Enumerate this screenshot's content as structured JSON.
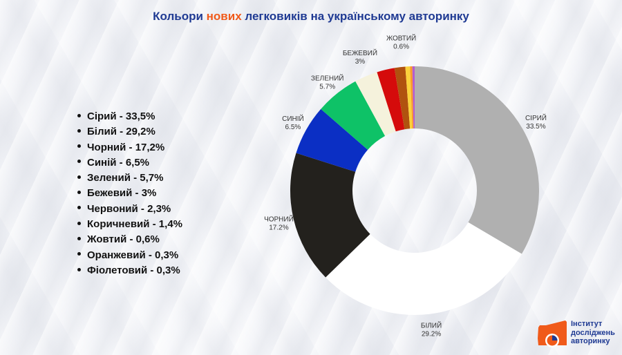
{
  "title": {
    "prefix": "Кольори ",
    "accent": "нових",
    "suffix": " легковиків на українському авторинку",
    "color": "#1f3a93",
    "accent_color": "#f05a1a"
  },
  "legend": [
    "Сірий - 33,5%",
    "Білий - 29,2%",
    "Чорний - 17,2%",
    "Синій - 6,5%",
    "Зелений - 5,7%",
    "Бежевий - 3%",
    "Червоний - 2,3%",
    "Коричневий - 1,4%",
    "Жовтий - 0,6%",
    "Оранжевий - 0,3%",
    "Фіолетовий - 0,3%"
  ],
  "chart_data": {
    "type": "pie",
    "subtype": "donut",
    "title": "Кольори нових легковиків на українському авторинку",
    "categories": [
      "Сірий",
      "Білий",
      "Чорний",
      "Синій",
      "Зелений",
      "Бежевий",
      "Червоний",
      "Коричневий",
      "Жовтий",
      "Оранжевий",
      "Фіолетовий"
    ],
    "values": [
      33.5,
      29.2,
      17.2,
      6.5,
      5.7,
      3.0,
      2.3,
      1.4,
      0.6,
      0.3,
      0.3
    ],
    "colors": [
      "#b0b0b0",
      "#ffffff",
      "#23211d",
      "#0b2fc4",
      "#0ec267",
      "#f5f2dc",
      "#d50b0b",
      "#b0520f",
      "#fbd23b",
      "#fb9a2a",
      "#b45cd0"
    ],
    "unit": "%",
    "start_angle_deg": 0,
    "direction": "clockwise",
    "data_labels": [
      {
        "name": "СІРИЙ",
        "value": "33.5%"
      },
      {
        "name": "БІЛИЙ",
        "value": "29.2%"
      },
      {
        "name": "ЧОРНИЙ",
        "value": "17.2%"
      },
      {
        "name": "СИНІЙ",
        "value": "6.5%"
      },
      {
        "name": "ЗЕЛЕНИЙ",
        "value": "5.7%"
      },
      {
        "name": "БЕЖЕВИЙ",
        "value": "3%"
      },
      {
        "name": "ЖОВТИЙ",
        "value": "0.6%"
      }
    ]
  },
  "logo": {
    "lines": [
      "Інститут",
      "досліджень",
      "авторинку"
    ],
    "color": "#f05a1a"
  }
}
